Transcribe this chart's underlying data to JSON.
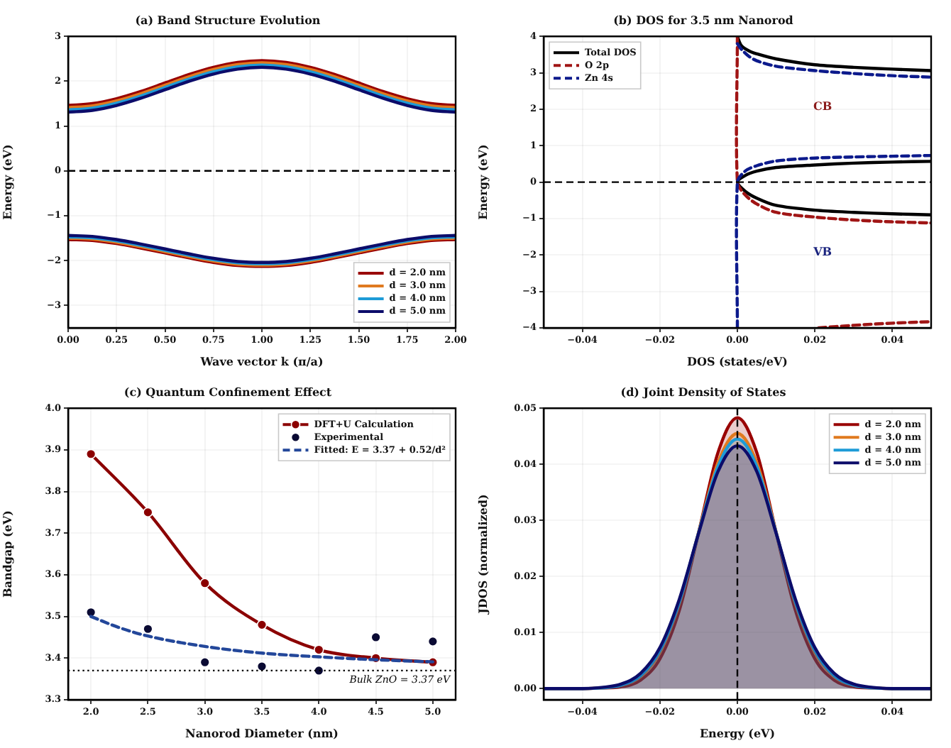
{
  "chart_data": [
    {
      "type": "line",
      "title": "(a) Band Structure Evolution",
      "xlabel": "Wave vector k (π/a)",
      "ylabel": "Energy (eV)",
      "x": [
        0,
        0.125,
        0.25,
        0.375,
        0.5,
        0.625,
        0.75,
        0.875,
        1,
        1.125,
        1.25,
        1.375,
        1.5,
        1.625,
        1.75,
        1.875,
        2
      ],
      "series": [
        {
          "name": "d = 2.0 nm",
          "color": "#990000",
          "values": [
            1.46,
            1.5,
            1.61,
            1.77,
            1.96,
            2.15,
            2.31,
            2.42,
            2.46,
            2.42,
            2.31,
            2.15,
            1.96,
            1.77,
            1.61,
            1.5,
            1.46
          ]
        },
        {
          "color": "#990000",
          "values": [
            -1.53,
            -1.55,
            -1.62,
            -1.72,
            -1.83,
            -1.94,
            -2.04,
            -2.11,
            -2.13,
            -2.11,
            -2.04,
            -1.94,
            -1.83,
            -1.72,
            -1.62,
            -1.55,
            -1.53
          ]
        },
        {
          "name": "d = 3.0 nm",
          "color": "#e07a1f",
          "values": [
            1.41,
            1.45,
            1.56,
            1.72,
            1.91,
            2.1,
            2.26,
            2.37,
            2.41,
            2.37,
            2.26,
            2.1,
            1.91,
            1.72,
            1.56,
            1.45,
            1.41
          ]
        },
        {
          "color": "#e07a1f",
          "values": [
            -1.5,
            -1.52,
            -1.59,
            -1.69,
            -1.8,
            -1.91,
            -2.01,
            -2.08,
            -2.1,
            -2.08,
            -2.01,
            -1.91,
            -1.8,
            -1.69,
            -1.59,
            -1.52,
            -1.5
          ]
        },
        {
          "name": "d = 4.0 nm",
          "color": "#1e9bd7",
          "values": [
            1.36,
            1.4,
            1.51,
            1.67,
            1.86,
            2.05,
            2.21,
            2.32,
            2.36,
            2.32,
            2.21,
            2.05,
            1.86,
            1.67,
            1.51,
            1.4,
            1.36
          ]
        },
        {
          "color": "#1e9bd7",
          "values": [
            -1.47,
            -1.49,
            -1.56,
            -1.66,
            -1.77,
            -1.88,
            -1.98,
            -2.05,
            -2.07,
            -2.05,
            -1.98,
            -1.88,
            -1.77,
            -1.66,
            -1.56,
            -1.49,
            -1.47
          ]
        },
        {
          "name": "d = 5.0 nm",
          "color": "#0c0c6a",
          "values": [
            1.31,
            1.35,
            1.46,
            1.62,
            1.81,
            2.0,
            2.16,
            2.27,
            2.31,
            2.27,
            2.16,
            2.0,
            1.81,
            1.62,
            1.46,
            1.35,
            1.31
          ]
        },
        {
          "color": "#0c0c6a",
          "values": [
            -1.44,
            -1.46,
            -1.53,
            -1.63,
            -1.74,
            -1.85,
            -1.95,
            -2.02,
            -2.04,
            -2.02,
            -1.95,
            -1.85,
            -1.74,
            -1.63,
            -1.53,
            -1.46,
            -1.44
          ]
        }
      ],
      "xlim": [
        0,
        2
      ],
      "xticks": [
        {
          "value": 0,
          "label": "0.00"
        },
        {
          "value": 0.25,
          "label": "0.25"
        },
        {
          "value": 0.5,
          "label": "0.50"
        },
        {
          "value": 0.75,
          "label": "0.75"
        },
        {
          "value": 1,
          "label": "1.00"
        },
        {
          "value": 1.25,
          "label": "1.25"
        },
        {
          "value": 1.5,
          "label": "1.50"
        },
        {
          "value": 1.75,
          "label": "1.75"
        },
        {
          "value": 2,
          "label": "2.00"
        }
      ],
      "ylim": [
        -3.5,
        3
      ],
      "yticks": [
        {
          "value": -3,
          "label": "−3"
        },
        {
          "value": -2,
          "label": "−2"
        },
        {
          "value": -1,
          "label": "−1"
        },
        0,
        1,
        2,
        3
      ],
      "ref_lines": [
        {
          "axis": "y",
          "value": 0,
          "color": "#000000",
          "line_style": "dashed"
        }
      ],
      "grid": true,
      "legend": "bottom right"
    },
    {
      "type": "line",
      "title": "(b) DOS for 3.5 nm Nanorod",
      "xlabel": "DOS (states/eV)",
      "ylabel": "Energy (eV)",
      "series": [
        {
          "name": "Total DOS",
          "color": "#000000",
          "line_style": "solid",
          "x": [
            0,
            0.001,
            0.003,
            0.005,
            0.01,
            0.02,
            0.03,
            0.04,
            0.05
          ],
          "values": [
            4,
            3.75,
            3.6,
            3.52,
            3.38,
            3.22,
            3.15,
            3.1,
            3.06
          ]
        },
        {
          "color": "#000000",
          "line_style": "solid",
          "x": [
            0.05,
            0.04,
            0.03,
            0.02,
            0.01,
            0.005,
            0.002,
            0,
            0.002,
            0.005,
            0.01,
            0.02,
            0.03,
            0.04,
            0.05
          ],
          "values": [
            0.57,
            0.55,
            0.52,
            0.47,
            0.4,
            0.3,
            0.18,
            0,
            -0.25,
            -0.44,
            -0.64,
            -0.77,
            -0.83,
            -0.87,
            -0.9
          ]
        },
        {
          "name": "O 2p",
          "color": "#a01515",
          "line_style": "dashed",
          "x": [
            0,
            0,
            0.002,
            0.005,
            0.01,
            0.02,
            0.03,
            0.04,
            0.05
          ],
          "values": [
            4,
            0,
            -0.35,
            -0.6,
            -0.83,
            -0.96,
            -1.04,
            -1.09,
            -1.12
          ]
        },
        {
          "color": "#a01515",
          "line_style": "dashed",
          "x": [
            0.021,
            0.03,
            0.04,
            0.05
          ],
          "values": [
            -4,
            -3.93,
            -3.87,
            -3.83
          ]
        },
        {
          "name": "Zn 4s",
          "color": "#0c1a8c",
          "line_style": "dashed",
          "x": [
            0,
            0,
            0.002,
            0.005,
            0.01,
            0.02,
            0.03,
            0.04,
            0.05
          ],
          "values": [
            -4,
            0,
            0.3,
            0.45,
            0.58,
            0.66,
            0.69,
            0.71,
            0.73
          ]
        },
        {
          "color": "#0c1a8c",
          "line_style": "dashed",
          "x": [
            0,
            0.001,
            0.003,
            0.005,
            0.01,
            0.02,
            0.03,
            0.04,
            0.05
          ],
          "values": [
            3.8,
            3.65,
            3.45,
            3.33,
            3.18,
            3.06,
            2.98,
            2.92,
            2.88
          ]
        }
      ],
      "xlim": [
        -0.05,
        0.05
      ],
      "xticks": [
        {
          "value": -0.04,
          "label": "−0.04"
        },
        {
          "value": -0.02,
          "label": "−0.02"
        },
        {
          "value": 0,
          "label": "0.00"
        },
        {
          "value": 0.02,
          "label": "0.02"
        },
        {
          "value": 0.04,
          "label": "0.04"
        }
      ],
      "ylim": [
        -4,
        4
      ],
      "yticks": [
        {
          "value": -4,
          "label": "−4"
        },
        {
          "value": -3,
          "label": "−3"
        },
        {
          "value": -2,
          "label": "−2"
        },
        {
          "value": -1,
          "label": "−1"
        },
        0,
        1,
        2,
        3,
        4
      ],
      "ref_lines": [
        {
          "axis": "y",
          "value": 0,
          "color": "#000000",
          "line_style": "dashed"
        }
      ],
      "annotations": [
        "CB",
        "VB"
      ],
      "grid": true,
      "legend": "top left"
    },
    {
      "type": "line",
      "title": "(c) Quantum Confinement Effect",
      "xlabel": "Nanorod Diameter (nm)",
      "ylabel": "Bandgap (eV)",
      "series": [
        {
          "name": "DFT+U Calculation",
          "color": "#8b0000",
          "marker": "circle",
          "x": [
            2,
            2.5,
            3,
            3.5,
            4,
            4.5,
            5
          ],
          "values": [
            3.89,
            3.75,
            3.58,
            3.48,
            3.42,
            3.4,
            3.39
          ]
        },
        {
          "name": "Experimental",
          "type": "scatter",
          "color": "#0a0a33",
          "marker": "circle",
          "x": [
            2,
            2.5,
            3,
            3.5,
            4,
            4.5,
            5
          ],
          "values": [
            3.51,
            3.47,
            3.39,
            3.38,
            3.37,
            3.45,
            3.44
          ]
        },
        {
          "name": "Fitted: E = 3.37 + 0.52/d²",
          "color": "#23479a",
          "line_style": "dashed",
          "x": [
            2,
            2.25,
            2.5,
            3,
            3.5,
            4,
            4.5,
            5
          ],
          "values": [
            3.5,
            3.473,
            3.453,
            3.428,
            3.412,
            3.403,
            3.396,
            3.391
          ]
        }
      ],
      "xlim": [
        1.8,
        5.2
      ],
      "xticks": [
        {
          "value": 2,
          "label": "2.0"
        },
        {
          "value": 2.5,
          "label": "2.5"
        },
        {
          "value": 3,
          "label": "3.0"
        },
        {
          "value": 3.5,
          "label": "3.5"
        },
        {
          "value": 4,
          "label": "4.0"
        },
        {
          "value": 4.5,
          "label": "4.5"
        },
        {
          "value": 5,
          "label": "5.0"
        }
      ],
      "ylim": [
        3.3,
        4.0
      ],
      "yticks": [
        3.3,
        3.4,
        3.5,
        3.6,
        3.7,
        3.8,
        3.9,
        {
          "value": 4,
          "label": "4.0"
        }
      ],
      "ref_lines": [
        {
          "axis": "y",
          "value": 3.37,
          "label": "Bulk ZnO = 3.37 eV",
          "color": "#000000",
          "line_style": "dotted"
        }
      ],
      "grid": true,
      "legend": "top right"
    },
    {
      "type": "area",
      "title": "(d) Joint Density of States",
      "xlabel": "Energy (eV)",
      "ylabel": "JDOS (normalized)",
      "x": [
        -0.05,
        -0.045,
        -0.04,
        -0.035,
        -0.03,
        -0.025,
        -0.02,
        -0.015,
        -0.01,
        -0.005,
        0,
        0.005,
        0.01,
        0.015,
        0.02,
        0.025,
        0.03,
        0.035,
        0.04,
        0.045,
        0.05
      ],
      "series": [
        {
          "name": "d = 2.0 nm",
          "color": "#990000",
          "values": [
            0,
            0,
            0,
            0.0001,
            0.0003,
            0.0015,
            0.0053,
            0.0139,
            0.0278,
            0.0421,
            0.0483,
            0.0421,
            0.0278,
            0.0139,
            0.0053,
            0.0015,
            0.0003,
            0.0001,
            0,
            0,
            0
          ]
        },
        {
          "name": "d = 3.0 nm",
          "color": "#e07a1f",
          "values": [
            0,
            0,
            0,
            0.0001,
            0.0006,
            0.0021,
            0.0064,
            0.0151,
            0.0279,
            0.0403,
            0.0455,
            0.0403,
            0.0279,
            0.0151,
            0.0064,
            0.0021,
            0.0006,
            0.0001,
            0,
            0,
            0
          ]
        },
        {
          "name": "d = 4.0 nm",
          "color": "#1e9bd7",
          "values": [
            0,
            0,
            0,
            0.0001,
            0.0006,
            0.0023,
            0.0068,
            0.0154,
            0.0278,
            0.0396,
            0.0445,
            0.0396,
            0.0278,
            0.0154,
            0.0068,
            0.0023,
            0.0006,
            0.0001,
            0,
            0,
            0
          ]
        },
        {
          "name": "d = 5.0 nm",
          "color": "#0c0c6a",
          "values": [
            0,
            0,
            0,
            0.0002,
            0.0008,
            0.0027,
            0.0073,
            0.0159,
            0.0277,
            0.0387,
            0.0433,
            0.0387,
            0.0277,
            0.0159,
            0.0073,
            0.0027,
            0.0008,
            0.0002,
            0,
            0,
            0
          ]
        }
      ],
      "xlim": [
        -0.05,
        0.05
      ],
      "xticks": [
        {
          "value": -0.04,
          "label": "−0.04"
        },
        {
          "value": -0.02,
          "label": "−0.02"
        },
        {
          "value": 0,
          "label": "0.00"
        },
        {
          "value": 0.02,
          "label": "0.02"
        },
        {
          "value": 0.04,
          "label": "0.04"
        }
      ],
      "ylim": [
        -0.002,
        0.05
      ],
      "yticks": [
        {
          "value": 0,
          "label": "0.00"
        },
        {
          "value": 0.01,
          "label": "0.01"
        },
        {
          "value": 0.02,
          "label": "0.02"
        },
        {
          "value": 0.03,
          "label": "0.03"
        },
        {
          "value": 0.04,
          "label": "0.04"
        },
        {
          "value": 0.05,
          "label": "0.05"
        }
      ],
      "ref_lines": [
        {
          "axis": "x",
          "value": 0,
          "color": "#000000",
          "line_style": "dashed"
        }
      ],
      "grid": true,
      "legend": "top right"
    }
  ]
}
